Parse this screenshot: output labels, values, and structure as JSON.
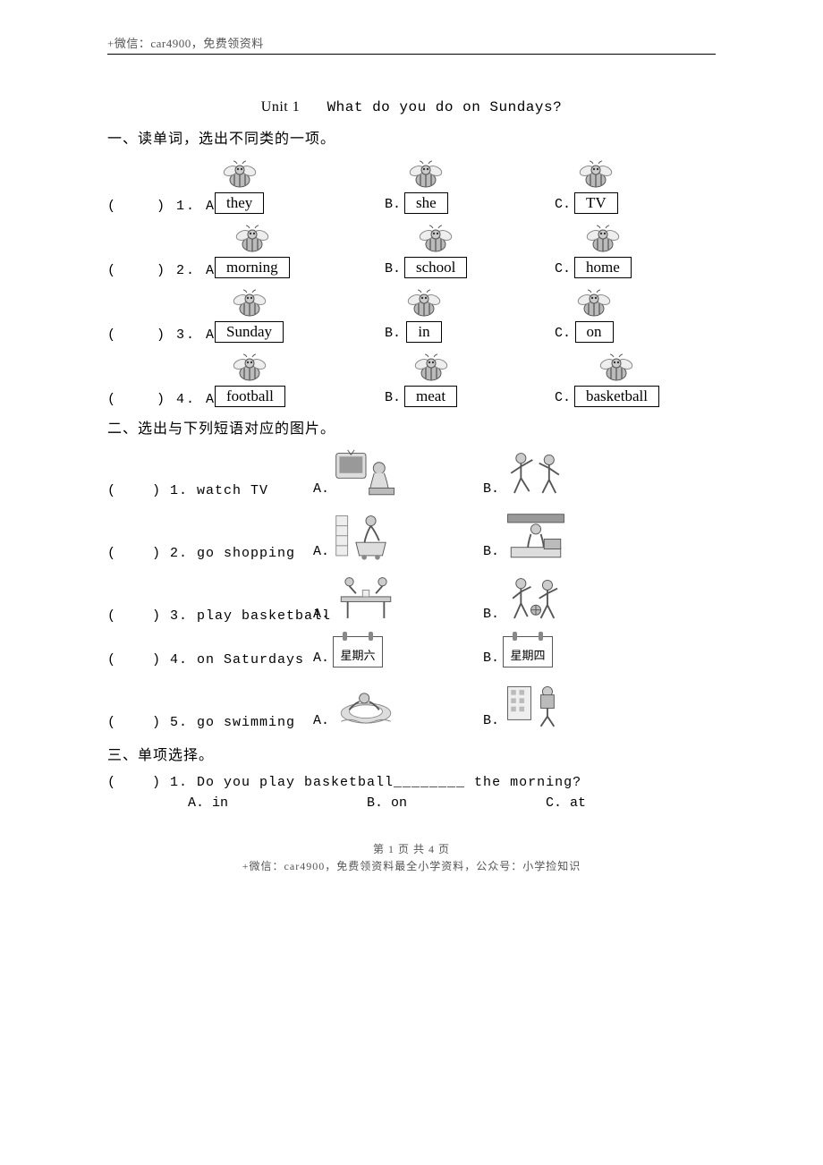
{
  "header": {
    "top_text": "+微信：car4900，免费领资料"
  },
  "title": {
    "unit": "Unit 1",
    "text": "What do you do on Sundays?"
  },
  "section1": {
    "heading": "一、读单词，选出不同类的一项。",
    "rows": [
      {
        "n": "1",
        "a": "they",
        "b": "she",
        "c": "TV"
      },
      {
        "n": "2",
        "a": "morning",
        "b": "school",
        "c": "home"
      },
      {
        "n": "3",
        "a": "Sunday",
        "b": "in",
        "c": "on"
      },
      {
        "n": "4",
        "a": "football",
        "b": "meat",
        "c": "basketball"
      }
    ]
  },
  "section2": {
    "heading": "二、选出与下列短语对应的图片。",
    "rows": [
      {
        "n": "1",
        "phrase": "watch TV",
        "atype": "tv",
        "btype": "play"
      },
      {
        "n": "2",
        "phrase": "go shopping",
        "atype": "shop",
        "btype": "cashier"
      },
      {
        "n": "3",
        "phrase": "play basketball",
        "atype": "pingpong",
        "btype": "basketball"
      },
      {
        "n": "4",
        "phrase": "on Saturdays",
        "atype": "cal",
        "aval": "星期六",
        "btype": "cal",
        "bval": "星期四"
      },
      {
        "n": "5",
        "phrase": "go swimming",
        "atype": "swim",
        "btype": "school"
      }
    ]
  },
  "section3": {
    "heading": "三、单项选择。",
    "q1": {
      "text": "(    ) 1. Do you play basketball________ the morning?",
      "a": "A. in",
      "b": "B. on",
      "c": "C. at"
    }
  },
  "footer": {
    "page_num": "第 1 页 共 4 页",
    "bottom_text": "+微信：car4900，免费领资料最全小学资料，公众号：小学捡知识"
  },
  "colors": {
    "text": "#000000",
    "muted": "#555555",
    "border": "#000000"
  }
}
